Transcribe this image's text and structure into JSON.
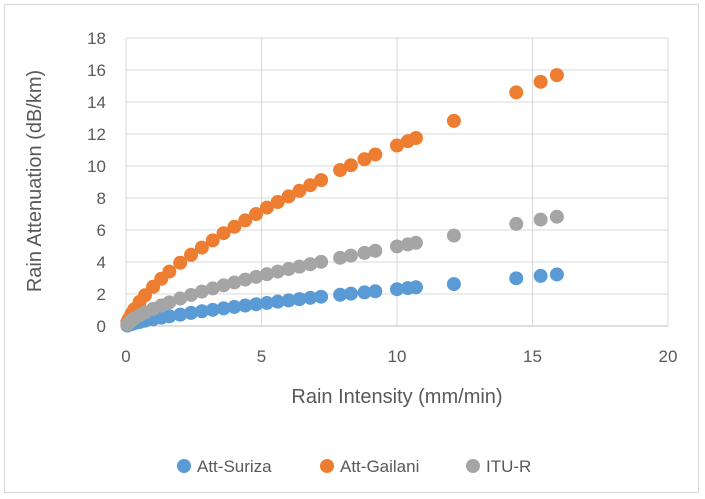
{
  "chart_data": {
    "type": "scatter",
    "xlabel": "Rain Intensity (mm/min)",
    "ylabel": "Rain Attenuation (dB/km)",
    "xlim": [
      0,
      20
    ],
    "ylim": [
      0,
      18
    ],
    "xticks": [
      0,
      5,
      10,
      15,
      20
    ],
    "yticks": [
      0,
      2,
      4,
      6,
      8,
      10,
      12,
      14,
      16,
      18
    ],
    "grid": true,
    "legend_position": "bottom",
    "series": [
      {
        "name": "Att-Suriza",
        "color": "#5b9bd5",
        "points": [
          [
            0.05,
            0.03
          ],
          [
            0.1,
            0.07
          ],
          [
            0.2,
            0.12
          ],
          [
            0.3,
            0.17
          ],
          [
            0.5,
            0.25
          ],
          [
            0.7,
            0.33
          ],
          [
            1.0,
            0.42
          ],
          [
            1.3,
            0.52
          ],
          [
            1.6,
            0.61
          ],
          [
            2.0,
            0.71
          ],
          [
            2.4,
            0.82
          ],
          [
            2.8,
            0.92
          ],
          [
            3.2,
            1.01
          ],
          [
            3.6,
            1.1
          ],
          [
            4.0,
            1.19
          ],
          [
            4.4,
            1.28
          ],
          [
            4.8,
            1.36
          ],
          [
            5.2,
            1.44
          ],
          [
            5.6,
            1.52
          ],
          [
            6.0,
            1.6
          ],
          [
            6.4,
            1.68
          ],
          [
            6.8,
            1.76
          ],
          [
            7.2,
            1.83
          ],
          [
            7.9,
            1.95
          ],
          [
            8.3,
            2.02
          ],
          [
            8.8,
            2.1
          ],
          [
            9.2,
            2.17
          ],
          [
            10.0,
            2.3
          ],
          [
            10.4,
            2.37
          ],
          [
            10.7,
            2.42
          ],
          [
            12.1,
            2.62
          ],
          [
            14.4,
            2.98
          ],
          [
            15.3,
            3.13
          ],
          [
            15.9,
            3.22
          ]
        ]
      },
      {
        "name": "Att-Gailani",
        "color": "#ed7d31",
        "points": [
          [
            0.05,
            0.25
          ],
          [
            0.1,
            0.43
          ],
          [
            0.2,
            0.75
          ],
          [
            0.3,
            1.03
          ],
          [
            0.5,
            1.5
          ],
          [
            0.7,
            1.92
          ],
          [
            1.0,
            2.45
          ],
          [
            1.3,
            2.95
          ],
          [
            1.6,
            3.4
          ],
          [
            2.0,
            3.95
          ],
          [
            2.4,
            4.45
          ],
          [
            2.8,
            4.9
          ],
          [
            3.2,
            5.35
          ],
          [
            3.6,
            5.8
          ],
          [
            4.0,
            6.2
          ],
          [
            4.4,
            6.6
          ],
          [
            4.8,
            7.0
          ],
          [
            5.2,
            7.4
          ],
          [
            5.6,
            7.75
          ],
          [
            6.0,
            8.1
          ],
          [
            6.4,
            8.45
          ],
          [
            6.8,
            8.8
          ],
          [
            7.2,
            9.12
          ],
          [
            7.9,
            9.75
          ],
          [
            8.3,
            10.05
          ],
          [
            8.8,
            10.42
          ],
          [
            9.2,
            10.72
          ],
          [
            10.0,
            11.28
          ],
          [
            10.4,
            11.55
          ],
          [
            10.7,
            11.75
          ],
          [
            12.1,
            12.82
          ],
          [
            14.4,
            14.6
          ],
          [
            15.3,
            15.26
          ],
          [
            15.9,
            15.68
          ]
        ]
      },
      {
        "name": "ITU-R",
        "color": "#a5a5a5",
        "points": [
          [
            0.05,
            0.1
          ],
          [
            0.1,
            0.19
          ],
          [
            0.2,
            0.33
          ],
          [
            0.3,
            0.46
          ],
          [
            0.5,
            0.66
          ],
          [
            0.7,
            0.84
          ],
          [
            1.0,
            1.07
          ],
          [
            1.3,
            1.28
          ],
          [
            1.6,
            1.48
          ],
          [
            2.0,
            1.72
          ],
          [
            2.4,
            1.94
          ],
          [
            2.8,
            2.15
          ],
          [
            3.2,
            2.35
          ],
          [
            3.6,
            2.54
          ],
          [
            4.0,
            2.72
          ],
          [
            4.4,
            2.9
          ],
          [
            4.8,
            3.07
          ],
          [
            5.2,
            3.24
          ],
          [
            5.6,
            3.4
          ],
          [
            6.0,
            3.56
          ],
          [
            6.4,
            3.71
          ],
          [
            6.8,
            3.86
          ],
          [
            7.2,
            4.01
          ],
          [
            7.9,
            4.26
          ],
          [
            8.3,
            4.4
          ],
          [
            8.8,
            4.57
          ],
          [
            9.2,
            4.7
          ],
          [
            10.0,
            4.97
          ],
          [
            10.4,
            5.1
          ],
          [
            10.7,
            5.2
          ],
          [
            12.1,
            5.65
          ],
          [
            14.4,
            6.38
          ],
          [
            15.3,
            6.65
          ],
          [
            15.9,
            6.83
          ]
        ]
      }
    ]
  }
}
